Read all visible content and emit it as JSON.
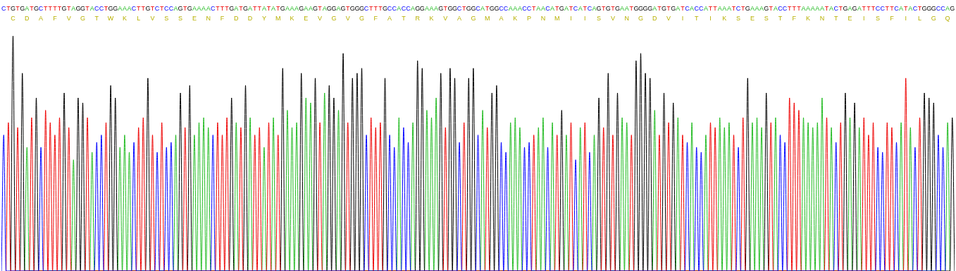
{
  "chart_data": {
    "type": "line",
    "grid": false,
    "tick_labels": "x",
    "xlim": [
      -0.5,
      204.5
    ],
    "ylim": [
      0,
      100
    ],
    "categories": [
      "C",
      "T",
      "G",
      "T",
      "G",
      "A",
      "T",
      "G",
      "C",
      "T",
      "T",
      "T",
      "T",
      "G",
      "T",
      "A",
      "G",
      "G",
      "T",
      "A",
      "C",
      "C",
      "T",
      "G",
      "G",
      "A",
      "A",
      "A",
      "C",
      "T",
      "T",
      "G",
      "T",
      "C",
      "T",
      "C",
      "C",
      "A",
      "G",
      "T",
      "G",
      "A",
      "A",
      "A",
      "A",
      "C",
      "T",
      "T",
      "T",
      "G",
      "A",
      "T",
      "G",
      "A",
      "T",
      "T",
      "A",
      "T",
      "A",
      "T",
      "G",
      "A",
      "A",
      "A",
      "G",
      "A",
      "A",
      "G",
      "T",
      "A",
      "G",
      "G",
      "A",
      "G",
      "T",
      "G",
      "G",
      "G",
      "C",
      "T",
      "T",
      "T",
      "G",
      "C",
      "C",
      "A",
      "C",
      "C",
      "A",
      "G",
      "G",
      "A",
      "A",
      "A",
      "G",
      "T",
      "G",
      "G",
      "C",
      "T",
      "G",
      "G",
      "C",
      "A",
      "T",
      "G",
      "G",
      "C",
      "C",
      "A",
      "A",
      "A",
      "C",
      "C",
      "T",
      "A",
      "A",
      "C",
      "A",
      "T",
      "G",
      "A",
      "T",
      "C",
      "A",
      "T",
      "C",
      "A",
      "G",
      "T",
      "G",
      "T",
      "G",
      "A",
      "A",
      "T",
      "G",
      "G",
      "G",
      "G",
      "A",
      "T",
      "G",
      "T",
      "G",
      "A",
      "T",
      "C",
      "A",
      "C",
      "C",
      "A",
      "T",
      "T",
      "A",
      "A",
      "A",
      "T",
      "C",
      "T",
      "G",
      "A",
      "A",
      "A",
      "G",
      "T",
      "A",
      "C",
      "C",
      "T",
      "T",
      "T",
      "A",
      "A",
      "A",
      "A",
      "A",
      "T",
      "A",
      "C",
      "T",
      "G",
      "A",
      "G",
      "A",
      "T",
      "T",
      "T",
      "C",
      "C",
      "T",
      "T",
      "C",
      "A",
      "T",
      "A",
      "C",
      "T",
      "G",
      "G",
      "G",
      "C",
      "C",
      "A",
      "G"
    ],
    "colors": [
      "#00f",
      "#e00",
      "#000",
      "#e00",
      "#000",
      "#2b2",
      "#e00",
      "#000",
      "#00f",
      "#e00",
      "#e00",
      "#e00",
      "#e00",
      "#000",
      "#e00",
      "#2b2",
      "#000",
      "#000",
      "#e00",
      "#2b2",
      "#00f",
      "#00f",
      "#e00",
      "#000",
      "#000",
      "#2b2",
      "#2b2",
      "#2b2",
      "#00f",
      "#e00",
      "#e00",
      "#000",
      "#e00",
      "#00f",
      "#e00",
      "#00f",
      "#00f",
      "#2b2",
      "#000",
      "#e00",
      "#000",
      "#2b2",
      "#2b2",
      "#2b2",
      "#2b2",
      "#00f",
      "#e00",
      "#e00",
      "#e00",
      "#000",
      "#2b2",
      "#e00",
      "#000",
      "#2b2",
      "#e00",
      "#e00",
      "#2b2",
      "#e00",
      "#2b2",
      "#e00",
      "#000",
      "#2b2",
      "#2b2",
      "#2b2",
      "#000",
      "#2b2",
      "#2b2",
      "#000",
      "#e00",
      "#2b2",
      "#000",
      "#000",
      "#2b2",
      "#000",
      "#e00",
      "#000",
      "#000",
      "#000",
      "#00f",
      "#e00",
      "#e00",
      "#e00",
      "#000",
      "#00f",
      "#00f",
      "#2b2",
      "#00f",
      "#00f",
      "#2b2",
      "#000",
      "#000",
      "#2b2",
      "#2b2",
      "#2b2",
      "#000",
      "#e00",
      "#000",
      "#000",
      "#00f",
      "#e00",
      "#000",
      "#000",
      "#00f",
      "#2b2",
      "#e00",
      "#000",
      "#000",
      "#00f",
      "#00f",
      "#2b2",
      "#2b2",
      "#2b2",
      "#00f",
      "#00f",
      "#e00",
      "#2b2",
      "#2b2",
      "#00f",
      "#2b2",
      "#e00",
      "#000",
      "#2b2",
      "#e00",
      "#00f",
      "#2b2",
      "#e00",
      "#00f",
      "#2b2",
      "#000",
      "#e00",
      "#000",
      "#e00",
      "#000",
      "#2b2",
      "#2b2",
      "#e00",
      "#000",
      "#000",
      "#000",
      "#000",
      "#2b2",
      "#e00",
      "#000",
      "#e00",
      "#000",
      "#2b2",
      "#e00",
      "#00f",
      "#2b2",
      "#00f",
      "#00f",
      "#2b2",
      "#e00",
      "#e00",
      "#2b2",
      "#2b2",
      "#2b2",
      "#e00",
      "#00f",
      "#e00",
      "#000",
      "#2b2",
      "#2b2",
      "#2b2",
      "#000",
      "#e00",
      "#2b2",
      "#00f",
      "#00f",
      "#e00",
      "#e00",
      "#e00",
      "#2b2",
      "#2b2",
      "#2b2",
      "#2b2",
      "#2b2",
      "#e00",
      "#2b2",
      "#00f",
      "#e00",
      "#000",
      "#2b2",
      "#000",
      "#2b2",
      "#e00",
      "#e00",
      "#e00",
      "#00f",
      "#00f",
      "#e00",
      "#e00",
      "#00f",
      "#2b2",
      "#e00",
      "#2b2",
      "#00f",
      "#e00",
      "#000",
      "#000",
      "#000",
      "#00f",
      "#00f",
      "#2b2",
      "#000"
    ],
    "values": [
      55,
      60,
      95,
      58,
      80,
      50,
      62,
      70,
      50,
      65,
      60,
      55,
      62,
      72,
      58,
      45,
      70,
      68,
      62,
      48,
      52,
      55,
      60,
      75,
      70,
      50,
      55,
      48,
      52,
      58,
      62,
      78,
      55,
      48,
      60,
      50,
      52,
      55,
      72,
      58,
      75,
      55,
      60,
      62,
      58,
      55,
      60,
      55,
      62,
      70,
      60,
      58,
      75,
      62,
      55,
      58,
      50,
      60,
      62,
      55,
      82,
      65,
      58,
      60,
      80,
      70,
      68,
      78,
      60,
      72,
      75,
      70,
      65,
      88,
      60,
      78,
      80,
      82,
      55,
      62,
      58,
      60,
      78,
      55,
      50,
      62,
      58,
      52,
      60,
      85,
      82,
      65,
      62,
      70,
      80,
      58,
      82,
      78,
      52,
      60,
      78,
      82,
      55,
      65,
      58,
      72,
      75,
      52,
      48,
      60,
      62,
      58,
      50,
      52,
      55,
      58,
      62,
      50,
      60,
      55,
      65,
      55,
      60,
      45,
      58,
      60,
      48,
      55,
      70,
      58,
      80,
      55,
      72,
      62,
      60,
      55,
      85,
      88,
      80,
      78,
      65,
      55,
      72,
      60,
      68,
      62,
      55,
      52,
      60,
      50,
      48,
      55,
      60,
      58,
      62,
      58,
      60,
      55,
      50,
      62,
      78,
      60,
      62,
      58,
      72,
      60,
      62,
      55,
      52,
      70,
      68,
      65,
      62,
      60,
      58,
      60,
      70,
      62,
      58,
      52,
      60,
      72,
      62,
      68,
      58,
      62,
      55,
      60,
      50,
      48,
      60,
      58,
      52,
      60,
      78,
      58,
      50,
      62,
      72,
      70,
      68,
      55,
      50,
      60,
      62
    ],
    "translation": [
      null,
      null,
      "C",
      null,
      null,
      "D",
      null,
      null,
      "A",
      null,
      null,
      "F",
      null,
      null,
      "V",
      null,
      null,
      "G",
      null,
      null,
      "T",
      null,
      null,
      "W",
      null,
      null,
      "K",
      null,
      null,
      "L",
      null,
      null,
      "V",
      null,
      null,
      "S",
      null,
      null,
      "S",
      null,
      null,
      "E",
      null,
      null,
      "N",
      null,
      null,
      "F",
      null,
      null,
      "D",
      null,
      null,
      "D",
      null,
      null,
      "Y",
      null,
      null,
      "M",
      null,
      null,
      "K",
      null,
      null,
      "E",
      null,
      null,
      "V",
      null,
      null,
      "G",
      null,
      null,
      "V",
      null,
      null,
      "G",
      null,
      null,
      "F",
      null,
      null,
      "A",
      null,
      null,
      "T",
      null,
      null,
      "R",
      null,
      null,
      "K",
      null,
      null,
      "V",
      null,
      null,
      "A",
      null,
      null,
      "G",
      null,
      null,
      "M",
      null,
      null,
      "A",
      null,
      null,
      "K",
      null,
      null,
      "P",
      null,
      null,
      "N",
      null,
      null,
      "M",
      null,
      null,
      "I",
      null,
      null,
      "I",
      null,
      null,
      "S",
      null,
      null,
      "V",
      null,
      null,
      "N",
      null,
      null,
      "G",
      null,
      null,
      "D",
      null,
      null,
      "V",
      null,
      null,
      "I",
      null,
      null,
      "T",
      null,
      null,
      "I",
      null,
      null,
      "K",
      null,
      null,
      "S",
      null,
      null,
      "E",
      null,
      null,
      "S",
      null,
      null,
      "T",
      null,
      null,
      "F",
      null,
      null,
      "K",
      null,
      null,
      "N",
      null,
      null,
      "T",
      null,
      null,
      "E",
      null,
      null,
      "I",
      null,
      null,
      "S",
      null,
      null,
      "F",
      null,
      null,
      "I",
      null,
      null,
      "L",
      null,
      null,
      "G",
      null,
      null,
      "Q",
      null
    ]
  }
}
